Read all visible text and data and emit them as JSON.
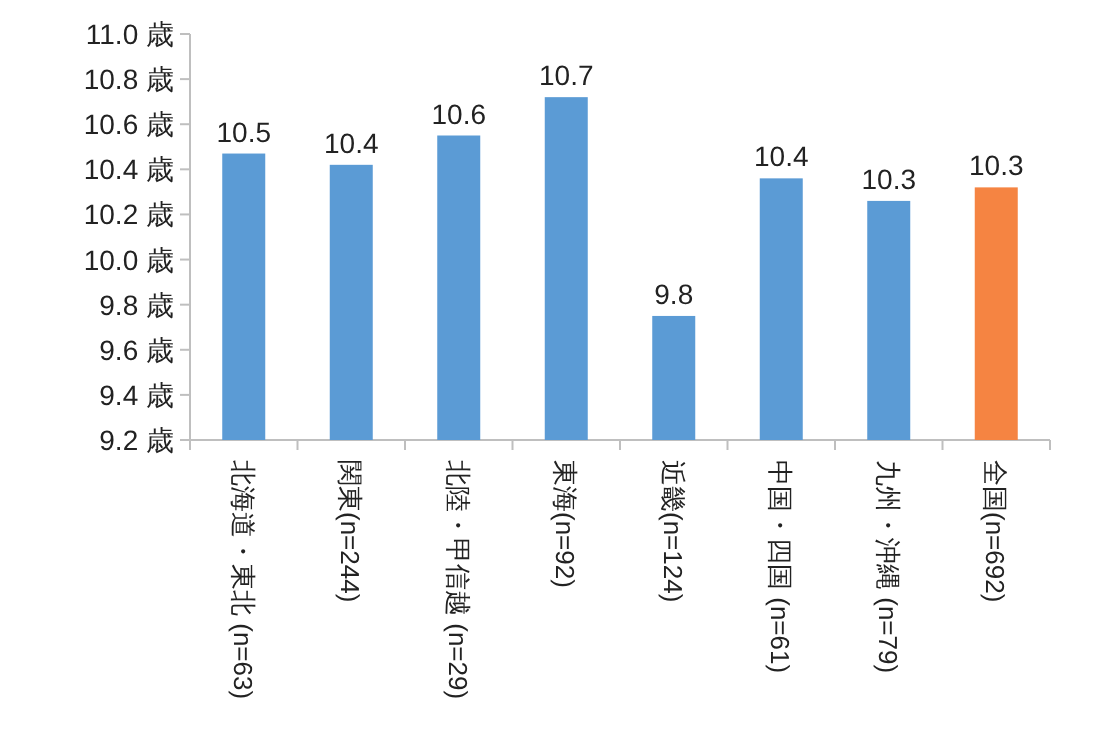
{
  "chart_data": {
    "type": "bar",
    "categories": [
      "北海道・東北 (n=63)",
      "関東(n=244)",
      "北陸・甲信越 (n=29)",
      "東海(n=92)",
      "近畿(n=124)",
      "中国・四国 (n=61)",
      "九州・沖縄 (n=79)",
      "全国(n=692)"
    ],
    "values": [
      10.47,
      10.42,
      10.55,
      10.72,
      9.75,
      10.36,
      10.26,
      10.32
    ],
    "value_labels": [
      "10.5",
      "10.4",
      "10.6",
      "10.7",
      "9.8",
      "10.4",
      "10.3",
      "10.3"
    ],
    "colors": [
      "#5b9bd5",
      "#5b9bd5",
      "#5b9bd5",
      "#5b9bd5",
      "#5b9bd5",
      "#5b9bd5",
      "#5b9bd5",
      "#f58442"
    ],
    "ylim": [
      9.2,
      11.0
    ],
    "yticks": [
      {
        "value": 9.2,
        "label": "9.2 歳"
      },
      {
        "value": 9.4,
        "label": "9.4 歳"
      },
      {
        "value": 9.6,
        "label": "9.6 歳"
      },
      {
        "value": 9.8,
        "label": "9.8 歳"
      },
      {
        "value": 10.0,
        "label": "10.0 歳"
      },
      {
        "value": 10.2,
        "label": "10.2 歳"
      },
      {
        "value": 10.4,
        "label": "10.4 歳"
      },
      {
        "value": 10.6,
        "label": "10.6 歳"
      },
      {
        "value": 10.8,
        "label": "10.8 歳"
      },
      {
        "value": 11.0,
        "label": "11.0 歳"
      }
    ]
  }
}
